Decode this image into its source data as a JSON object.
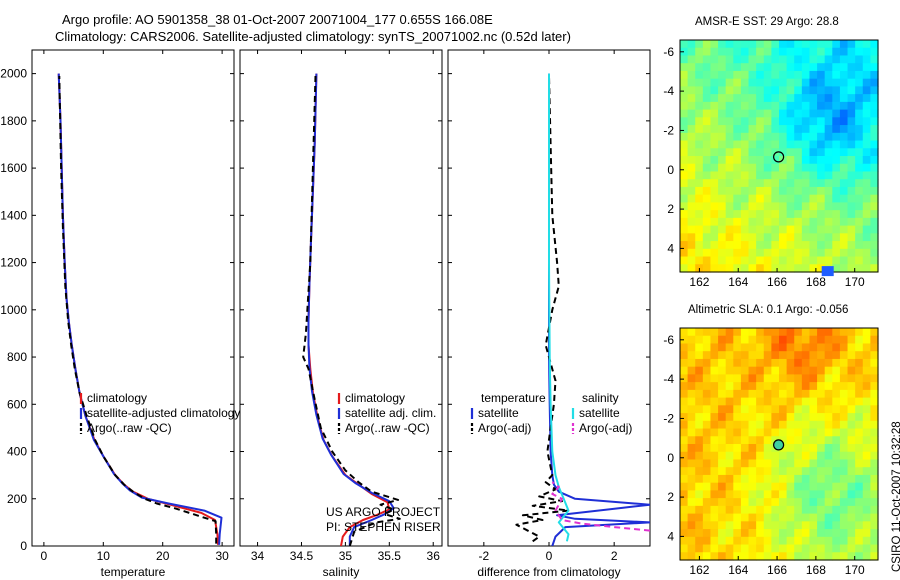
{
  "titles": {
    "line1": "Argo profile: AO 5901358_38 01-Oct-2007 20071004_177 0.655S 166.08E",
    "line2": "Climatology: CARS2006. Satellite-adjusted climatology: synTS_20071002.nc (0.52d later)"
  },
  "stamp": "CSIRO 11-Oct-2007 10:32:28",
  "project": {
    "line1": "US ARGO PROJECT",
    "line2": "PI: STEPHEN RISER"
  },
  "colors": {
    "climatology": "#e41a1c",
    "satellite": "#1f2fd6",
    "argo": "#000000",
    "cyan": "#22dde6",
    "magenta": "#e033d0"
  },
  "chart_data": [
    {
      "type": "line",
      "id": "temperature",
      "xlabel": "temperature",
      "ylabel": "",
      "xlim": [
        -2,
        32
      ],
      "ylim": [
        2100,
        0
      ],
      "xticks": [
        0,
        10,
        20,
        30
      ],
      "xticklabels": [
        "0",
        "10",
        "20",
        "30"
      ],
      "yticks": [
        0,
        200,
        400,
        600,
        800,
        1000,
        1200,
        1400,
        1600,
        1800,
        2000
      ],
      "yticklabels": [
        "0",
        "200",
        "400",
        "600",
        "800",
        "1000",
        "1200",
        "1400",
        "1600",
        "1800",
        "2000"
      ],
      "legend": [
        "climatology",
        "satellite-adjusted climatology",
        "Argo(..raw -QC)"
      ],
      "series": [
        {
          "name": "climatology",
          "color": "#e41a1c",
          "dash": false,
          "x": [
            29.3,
            29.2,
            28.8,
            26.5,
            22,
            17.5,
            15,
            13.5,
            12,
            10,
            8.5,
            7,
            6,
            5.3,
            4.7,
            4.2,
            3.8,
            3.5,
            3.2,
            3,
            2.8,
            2.5
          ],
          "y": [
            5,
            50,
            110,
            140,
            170,
            200,
            230,
            260,
            300,
            380,
            450,
            550,
            650,
            750,
            850,
            950,
            1050,
            1200,
            1400,
            1600,
            1800,
            2000
          ]
        },
        {
          "name": "satellite-adjusted climatology",
          "color": "#1f2fd6",
          "dash": false,
          "x": [
            29.5,
            29.6,
            29.9,
            27,
            21,
            16.5,
            14.5,
            13.2,
            11.8,
            10,
            8.4,
            7,
            6,
            5.3,
            4.7,
            4.2,
            3.8,
            3.5,
            3.2,
            3,
            2.8,
            2.5
          ],
          "y": [
            5,
            50,
            120,
            150,
            180,
            205,
            235,
            265,
            305,
            380,
            450,
            550,
            650,
            750,
            850,
            950,
            1050,
            1200,
            1400,
            1600,
            1800,
            2000
          ]
        },
        {
          "name": "Argo(..raw -QC)",
          "color": "#000000",
          "dash": true,
          "x": [
            29.0,
            29.0,
            28.9,
            27.0,
            24.5,
            22,
            19,
            17,
            15,
            13.5,
            12,
            10,
            8.6,
            7.2,
            6,
            5.2,
            4.6,
            4.1,
            3.6,
            3.2,
            2.9,
            2.6
          ],
          "y": [
            10,
            50,
            105,
            120,
            140,
            160,
            180,
            200,
            230,
            260,
            300,
            380,
            450,
            550,
            650,
            750,
            850,
            950,
            1100,
            1350,
            1600,
            1990
          ]
        }
      ]
    },
    {
      "type": "line",
      "id": "salinity",
      "xlabel": "salinity",
      "ylabel": "",
      "xlim": [
        33.8,
        36.1
      ],
      "ylim": [
        2100,
        0
      ],
      "xticks": [
        34,
        34.5,
        35,
        35.5,
        36
      ],
      "xticklabels": [
        "34",
        "34.5",
        "35",
        "35.5",
        "36"
      ],
      "legend": [
        "climatology",
        "satellite adj. clim.",
        "Argo(..raw -QC)"
      ],
      "series": [
        {
          "name": "climatology",
          "color": "#e41a1c",
          "dash": false,
          "x": [
            34.95,
            34.97,
            35.05,
            35.2,
            35.35,
            35.5,
            35.48,
            35.3,
            35.15,
            35.0,
            34.85,
            34.75,
            34.68,
            34.63,
            34.6,
            34.58,
            34.58,
            34.59,
            34.61,
            34.63,
            34.65,
            34.67
          ],
          "y": [
            0,
            40,
            80,
            110,
            130,
            155,
            185,
            220,
            260,
            300,
            380,
            450,
            550,
            650,
            750,
            850,
            950,
            1100,
            1300,
            1500,
            1700,
            2000
          ]
        },
        {
          "name": "satellite adj. clim.",
          "color": "#1f2fd6",
          "dash": false,
          "x": [
            35.05,
            35.05,
            35.1,
            35.3,
            35.45,
            35.55,
            35.5,
            35.3,
            35.12,
            34.98,
            34.84,
            34.74,
            34.67,
            34.62,
            34.59,
            34.58,
            34.58,
            34.59,
            34.61,
            34.63,
            34.65,
            34.67
          ],
          "y": [
            0,
            40,
            80,
            110,
            135,
            160,
            190,
            225,
            265,
            305,
            385,
            455,
            555,
            655,
            755,
            855,
            955,
            1105,
            1305,
            1505,
            1705,
            2000
          ]
        },
        {
          "name": "Argo(..raw -QC)",
          "color": "#000000",
          "dash": true,
          "x": [
            35.05,
            35.1,
            35.35,
            35.62,
            35.45,
            35.55,
            35.4,
            35.6,
            35.3,
            35.15,
            35.0,
            34.85,
            34.72,
            34.65,
            34.58,
            34.52,
            34.55,
            34.6,
            34.63,
            34.66
          ],
          "y": [
            0,
            60,
            100,
            115,
            135,
            155,
            175,
            195,
            230,
            270,
            320,
            400,
            500,
            620,
            750,
            800,
            900,
            1200,
            1600,
            1990
          ]
        }
      ]
    },
    {
      "type": "line",
      "id": "difference",
      "xlabel": "difference from climatology",
      "ylabel": "",
      "xlim": [
        -3.1,
        3.1
      ],
      "ylim": [
        2100,
        0
      ],
      "xticks": [
        -2,
        0,
        2
      ],
      "xticklabels": [
        "-2",
        "0",
        "2"
      ],
      "legend_headers": [
        "temperature",
        "salinity"
      ],
      "legend": [
        "satellite",
        "Argo(-adj)",
        "satellite",
        "Argo(-adj)"
      ],
      "series": [
        {
          "name": "temperature satellite",
          "color": "#1f2fd6",
          "dash": false,
          "x": [
            0.1,
            0.2,
            0.5,
            3.1,
            0.8,
            0.25,
            3.1,
            0.8,
            0.3,
            0.15,
            0.1,
            0.05,
            0.02,
            0,
            0,
            0,
            0,
            0
          ],
          "y": [
            0,
            40,
            80,
            100,
            115,
            130,
            175,
            200,
            230,
            260,
            300,
            400,
            600,
            800,
            1000,
            1400,
            1800,
            2000
          ]
        },
        {
          "name": "temperature Argo(-adj)",
          "color": "#000000",
          "dash": true,
          "x": [
            -0.5,
            -0.3,
            -1.0,
            -0.2,
            -0.8,
            0.6,
            -0.5,
            0.4,
            -0.3,
            0.2,
            -0.1,
            0.1,
            -0.05,
            0.05,
            0.15,
            0.2,
            -0.1,
            0.1,
            0.3,
            0.25,
            0.1,
            0.05,
            0
          ],
          "y": [
            20,
            40,
            90,
            110,
            130,
            150,
            170,
            190,
            210,
            240,
            270,
            300,
            400,
            500,
            600,
            700,
            850,
            1000,
            1100,
            1200,
            1400,
            1700,
            1990
          ]
        },
        {
          "name": "salinity satellite",
          "color": "#22dde6",
          "dash": false,
          "x": [
            0.55,
            0.6,
            0.3,
            0.6,
            0.45,
            0.3,
            0.2,
            0.1,
            0.05,
            0.02,
            0,
            0,
            0
          ],
          "y": [
            20,
            50,
            100,
            150,
            200,
            250,
            300,
            400,
            600,
            800,
            1200,
            1600,
            2000
          ]
        },
        {
          "name": "salinity Argo(-adj)",
          "color": "#e033d0",
          "dash": true,
          "x": [
            3.1,
            2.0,
            1.0,
            0.4,
            0.2,
            0.4,
            0.1,
            0.3,
            0.1
          ],
          "y": [
            65,
            80,
            95,
            110,
            150,
            200,
            220,
            250,
            270
          ]
        }
      ]
    },
    {
      "type": "heatmap",
      "id": "sst",
      "title": "AMSR-E SST: 29 Argo: 28.8",
      "xlim": [
        161,
        171.2
      ],
      "ylim": [
        -6.6,
        5.2
      ],
      "xticks": [
        162,
        164,
        166,
        168,
        170
      ],
      "xticklabels": [
        "162",
        "164",
        "166",
        "168",
        "170"
      ],
      "yticks": [
        -6,
        -4,
        -2,
        0,
        2,
        4
      ],
      "yticklabels": [
        "-6",
        "-4",
        "-2",
        "0",
        "2",
        "4"
      ],
      "marker": {
        "x": 166.08,
        "y": -0.655
      }
    },
    {
      "type": "heatmap",
      "id": "sla",
      "title": "Altimetric SLA: 0.1 Argo: -0.056",
      "xlim": [
        161,
        171.2
      ],
      "ylim": [
        -6.6,
        5.2
      ],
      "xticks": [
        162,
        164,
        166,
        168,
        170
      ],
      "xticklabels": [
        "162",
        "164",
        "166",
        "168",
        "170"
      ],
      "yticks": [
        -6,
        -4,
        -2,
        0,
        2,
        4
      ],
      "yticklabels": [
        "-6",
        "-4",
        "-2",
        "0",
        "2",
        "4"
      ],
      "marker": {
        "x": 166.08,
        "y": -0.655
      }
    }
  ]
}
